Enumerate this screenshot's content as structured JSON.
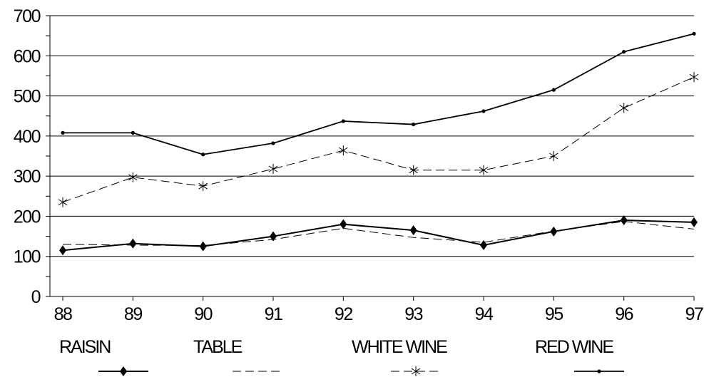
{
  "chart_data": {
    "type": "line",
    "categories": [
      "88",
      "89",
      "90",
      "91",
      "92",
      "93",
      "94",
      "95",
      "96",
      "97"
    ],
    "ylim": [
      0,
      700
    ],
    "yticks": [
      0,
      100,
      200,
      300,
      400,
      500,
      600,
      700
    ],
    "grid": true,
    "legend_position": "bottom",
    "series": [
      {
        "name": "RAISIN",
        "style": "solid-diamond",
        "values": [
          115,
          132,
          125,
          150,
          180,
          165,
          128,
          162,
          190,
          185
        ]
      },
      {
        "name": "TABLE",
        "style": "dashed",
        "values": [
          130,
          128,
          127,
          142,
          170,
          147,
          135,
          163,
          187,
          168
        ]
      },
      {
        "name": "WHITE WINE",
        "style": "dashed-star",
        "values": [
          235,
          297,
          275,
          318,
          364,
          315,
          315,
          350,
          470,
          547
        ]
      },
      {
        "name": "RED WINE",
        "style": "solid-dot",
        "values": [
          408,
          408,
          354,
          382,
          437,
          429,
          462,
          515,
          610,
          655
        ]
      }
    ],
    "colors": {
      "line": "#000000",
      "grid": "#000000",
      "background": "#ffffff"
    }
  }
}
